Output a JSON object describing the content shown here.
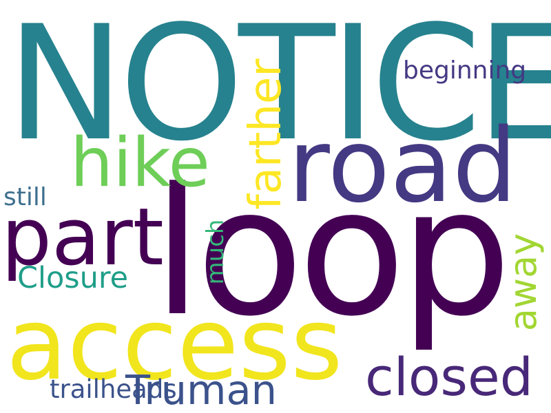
{
  "words": [
    {
      "text": "NOTICE",
      "color": "#26828e"
    },
    {
      "text": "loop",
      "color": "#440154"
    },
    {
      "text": "road",
      "color": "#443983"
    },
    {
      "text": "access",
      "color": "#f1e51d"
    },
    {
      "text": "part",
      "color": "#440154"
    },
    {
      "text": "hike",
      "color": "#6ece58"
    },
    {
      "text": "closed",
      "color": "#482878"
    },
    {
      "text": "Truman",
      "color": "#3b528b"
    },
    {
      "text": "Closure",
      "color": "#1f9e89"
    },
    {
      "text": "still",
      "color": "#3e6f8e"
    },
    {
      "text": "beginning",
      "color": "#443983"
    },
    {
      "text": "trailheads",
      "color": "#3b528b"
    },
    {
      "text": "farther",
      "color": "#fde725"
    },
    {
      "text": "away",
      "color": "#a2d633"
    },
    {
      "text": "much",
      "color": "#35b779"
    }
  ]
}
